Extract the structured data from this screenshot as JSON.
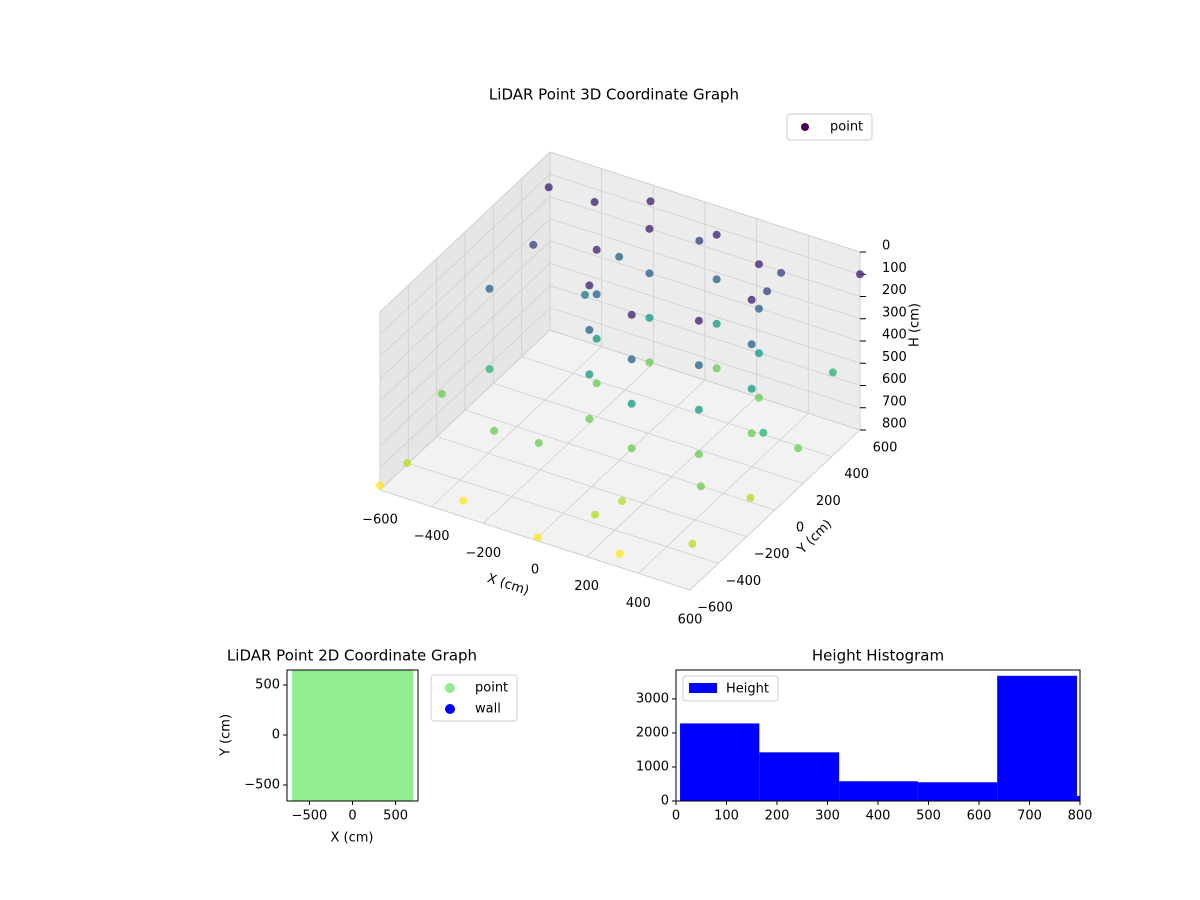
{
  "chart_data": [
    {
      "type": "scatter3d",
      "title": "LiDAR Point 3D Coordinate Graph",
      "xlabel": "X (cm)",
      "ylabel": "Y (cm)",
      "zlabel": "H (cm)",
      "cmap": "viridis",
      "zinverted": true,
      "series": [
        {
          "name": "point",
          "color": "#440154",
          "x": [
            400,
            312,
            100,
            -112,
            -200,
            -112,
            100,
            312,
            400,
            312,
            100,
            -112,
            -200,
            -112,
            100,
            312,
            400,
            312,
            100,
            -112,
            -200,
            -112,
            100,
            312,
            400,
            312,
            100,
            -112,
            -200,
            -112,
            100,
            312,
            -550,
            -400,
            -200,
            0,
            300,
            550,
            580,
            560,
            500,
            300,
            0,
            -300,
            -550,
            -580,
            -560,
            -500,
            -300,
            -350,
            200,
            450,
            -250,
            350,
            -450,
            150,
            -150,
            500,
            -600,
            600
          ],
          "y": [
            200,
            412,
            500,
            412,
            200,
            -12,
            -100,
            -12,
            200,
            412,
            500,
            412,
            200,
            -12,
            -100,
            -12,
            200,
            412,
            500,
            412,
            200,
            -12,
            -100,
            -12,
            200,
            412,
            500,
            412,
            200,
            -12,
            -100,
            -12,
            500,
            550,
            580,
            560,
            590,
            500,
            200,
            -100,
            -400,
            -550,
            -580,
            -560,
            -500,
            -200,
            100,
            300,
            300,
            -250,
            -350,
            -250,
            450,
            400,
            -100,
            -450,
            -300,
            100,
            -600,
            600
          ],
          "h": [
            50,
            50,
            50,
            50,
            50,
            50,
            50,
            50,
            250,
            250,
            250,
            250,
            250,
            250,
            250,
            250,
            450,
            450,
            450,
            450,
            450,
            450,
            450,
            450,
            650,
            650,
            650,
            650,
            650,
            650,
            650,
            650,
            80,
            120,
            60,
            150,
            200,
            500,
            650,
            700,
            750,
            780,
            800,
            760,
            720,
            600,
            300,
            200,
            350,
            650,
            700,
            600,
            250,
            150,
            500,
            720,
            600,
            550,
            780,
            100
          ]
        }
      ],
      "xlim": [
        -600,
        600
      ],
      "ylim": [
        -600,
        600
      ],
      "zlim": [
        0,
        800
      ],
      "xticks": [
        {
          "value": -600,
          "label": "−600"
        },
        {
          "value": -400,
          "label": "−400"
        },
        {
          "value": -200,
          "label": "−200"
        },
        0,
        200,
        400,
        600
      ],
      "yticks": [
        {
          "value": -600,
          "label": "−600"
        },
        {
          "value": -400,
          "label": "−400"
        },
        {
          "value": -200,
          "label": "−200"
        },
        0,
        200,
        400,
        600
      ],
      "zticks": [
        0,
        100,
        200,
        300,
        400,
        500,
        600,
        700,
        800
      ],
      "legend": "upper right"
    },
    {
      "type": "scatter",
      "title": "LiDAR Point 2D Coordinate Graph",
      "xlabel": "X (cm)",
      "ylabel": "Y (cm)",
      "series": [
        {
          "name": "point",
          "color": "#90ee90",
          "x": [
            -600,
            -400,
            -200,
            0,
            200,
            400,
            600,
            -600,
            -400,
            -200,
            0,
            200,
            400,
            600,
            -600,
            -400,
            -200,
            0,
            200,
            400,
            600,
            -600,
            -400,
            -200,
            0,
            200,
            400,
            600,
            -600,
            -400,
            -200,
            0,
            200,
            400,
            600,
            -600,
            -400,
            -200,
            0,
            200,
            400,
            600,
            -600,
            -400,
            -200,
            0,
            200,
            400,
            600
          ],
          "y": [
            600,
            600,
            600,
            600,
            600,
            600,
            600,
            400,
            400,
            400,
            400,
            400,
            400,
            400,
            200,
            200,
            200,
            200,
            200,
            200,
            200,
            0,
            0,
            0,
            0,
            0,
            0,
            0,
            -200,
            -200,
            -200,
            -200,
            -200,
            -200,
            -200,
            -400,
            -400,
            -400,
            -400,
            -400,
            -400,
            -400,
            -600,
            -600,
            -600,
            -600,
            -600,
            -600,
            -600
          ]
        },
        {
          "name": "wall",
          "color": "#0000ff",
          "x": [],
          "y": []
        }
      ],
      "xlim": [
        -760,
        760
      ],
      "ylim": [
        -660,
        650
      ],
      "xticks": [
        {
          "value": -500,
          "label": "−500"
        },
        0,
        500
      ],
      "yticks": [
        {
          "value": -500,
          "label": "−500"
        },
        0,
        500
      ],
      "legend": "outside right"
    },
    {
      "type": "histogram",
      "title": "Height Histogram",
      "series": [
        {
          "name": "Height",
          "color": "#0000ff"
        }
      ],
      "bins": [
        8,
        165,
        323,
        479,
        636,
        794,
        800
      ],
      "counts": [
        2280,
        1430,
        580,
        550,
        3680,
        150
      ],
      "xlim": [
        0,
        800
      ],
      "ylim": [
        0,
        3850
      ],
      "xticks": [
        0,
        100,
        200,
        300,
        400,
        500,
        600,
        700,
        800
      ],
      "yticks": [
        0,
        1000,
        2000,
        3000
      ],
      "legend": "upper left"
    }
  ]
}
